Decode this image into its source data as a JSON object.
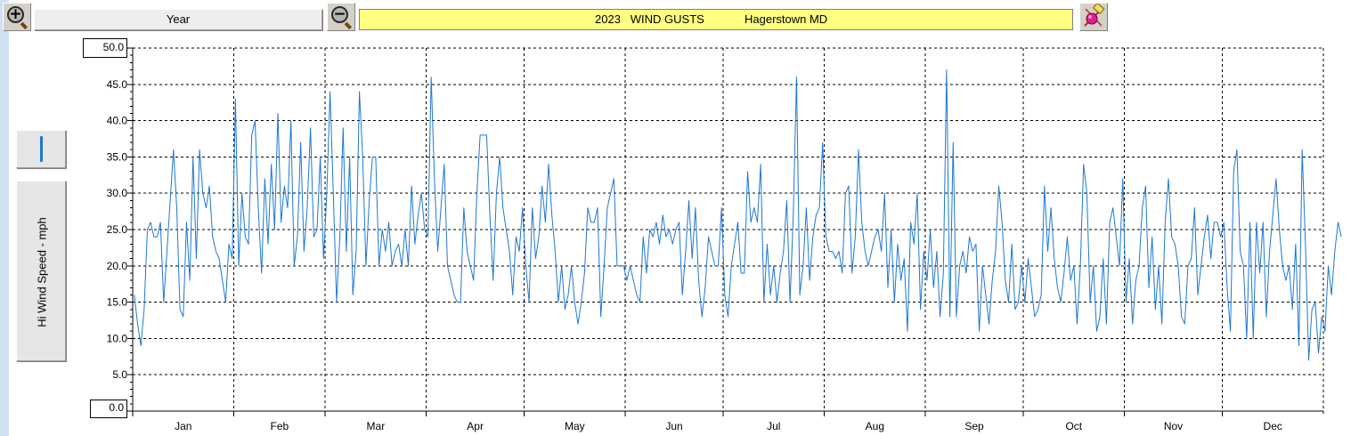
{
  "toolbar": {
    "zoom_in_icon": "zoom-in-magnifier-icon",
    "zoom_out_icon": "zoom-out-magnifier-icon",
    "period_label": "Year",
    "title_main": "2023   WIND GUSTS",
    "title_location": "Hagerstown MD",
    "tool_icon": "pin-tool-icon"
  },
  "side": {
    "param_icon": "vertical-bar-icon",
    "axis_label": "Hi Wind Speed - mph"
  },
  "colors": {
    "line": "#1e78d2",
    "title_bg": "#ffff80",
    "grid": "#000000"
  },
  "chart_data": {
    "type": "line",
    "title": "2023   WIND GUSTS",
    "subtitle": "Hagerstown MD",
    "ylabel": "Hi Wind Speed - mph",
    "xlabel": "",
    "ylim": [
      0,
      50
    ],
    "yticks": [
      "0.0",
      "5.0",
      "10.0",
      "15.0",
      "20.0",
      "25.0",
      "30.0",
      "35.0",
      "40.0",
      "45.0",
      "50.0"
    ],
    "months": [
      "Jan",
      "Feb",
      "Mar",
      "Apr",
      "May",
      "Jun",
      "Jul",
      "Aug",
      "Sep",
      "Oct",
      "Nov",
      "Dec"
    ],
    "month_days": [
      31,
      28,
      31,
      30,
      31,
      30,
      31,
      31,
      30,
      31,
      30,
      31
    ],
    "grid": true,
    "series": [
      {
        "values": [
          16,
          12,
          9,
          14,
          25,
          26,
          24,
          24,
          26,
          15,
          22,
          29,
          36,
          28,
          14,
          13,
          26,
          18,
          35,
          21,
          36,
          30,
          28,
          31,
          24,
          22,
          21,
          18,
          15,
          23,
          21,
          43,
          20,
          30,
          24,
          23,
          38,
          40,
          28,
          19,
          32,
          23,
          34,
          25,
          41,
          26,
          31,
          28,
          40,
          20,
          24,
          37,
          22,
          28,
          39,
          24,
          25,
          35,
          21,
          30,
          44,
          30,
          15,
          24,
          39,
          22,
          35,
          16,
          22,
          44,
          35,
          20,
          29,
          35,
          35,
          20,
          25,
          22,
          26,
          20,
          22,
          23,
          20,
          25,
          20,
          31,
          23,
          27,
          30,
          25,
          24,
          46,
          32,
          22,
          28,
          34,
          20,
          18,
          16,
          15,
          15,
          28,
          22,
          20,
          18,
          30,
          38,
          38,
          38,
          27,
          18,
          30,
          35,
          28,
          25,
          22,
          16,
          24,
          22,
          28,
          20,
          15,
          28,
          21,
          24,
          31,
          26,
          34,
          27,
          22,
          15,
          20,
          14,
          16,
          20,
          15,
          12,
          15,
          19,
          28,
          26,
          26,
          28,
          13,
          20,
          28,
          30,
          32,
          20,
          20,
          20,
          18,
          20,
          18,
          16,
          15,
          24,
          19,
          25,
          24,
          26,
          23,
          27,
          24,
          25,
          23,
          25,
          26,
          16,
          22,
          29,
          21,
          28,
          18,
          13,
          17,
          24,
          22,
          20,
          20,
          28,
          16,
          13,
          20,
          23,
          26,
          19,
          19,
          33,
          26,
          28,
          26,
          34,
          15,
          23,
          16,
          20,
          15,
          19,
          22,
          29,
          15,
          27,
          46,
          16,
          20,
          28,
          18,
          24,
          27,
          28,
          37,
          24,
          22,
          22,
          21,
          22,
          19,
          30,
          31,
          19,
          24,
          36,
          26,
          22,
          20,
          22,
          24,
          25,
          22,
          30,
          17,
          25,
          15,
          23,
          18,
          21,
          11,
          26,
          23,
          30,
          14,
          22,
          18,
          25,
          17,
          22,
          13,
          19,
          47,
          13,
          37,
          13,
          20,
          22,
          19,
          24,
          22,
          23,
          11,
          20,
          16,
          12,
          18,
          22,
          31,
          26,
          18,
          15,
          23,
          14,
          15,
          20,
          15,
          21,
          17,
          13,
          14,
          16,
          31,
          22,
          28,
          21,
          17,
          15,
          19,
          24,
          18,
          20,
          12,
          20,
          34,
          30,
          15,
          20,
          11,
          13,
          21,
          12,
          26,
          28,
          24,
          20,
          32,
          15,
          21,
          12,
          18,
          20,
          28,
          31,
          17,
          24,
          14,
          20,
          12,
          26,
          32,
          24,
          23,
          20,
          13,
          12,
          20,
          21,
          28,
          16,
          20,
          24,
          27,
          21,
          26,
          26,
          24,
          26,
          17,
          11,
          33,
          36,
          22,
          20,
          10,
          26,
          10,
          26,
          19,
          26,
          13,
          22,
          27,
          32,
          25,
          20,
          18,
          20,
          14,
          23,
          9,
          36,
          23,
          7,
          14,
          15,
          8,
          13,
          11,
          20,
          16,
          22,
          26,
          24
        ]
      }
    ]
  }
}
